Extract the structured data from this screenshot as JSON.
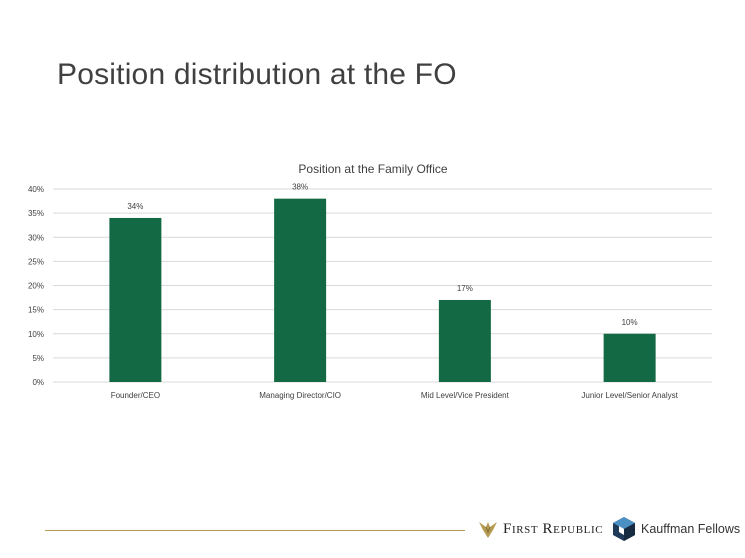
{
  "slide": {
    "title": "Position distribution at the FO"
  },
  "footer": {
    "left_logo_text": "First Republic",
    "right_logo_text": "Kauffman Fellows"
  },
  "colors": {
    "bar": "#136944",
    "grid": "#d9d9d9",
    "text": "#404040",
    "gold": "#b59a52"
  },
  "chart_data": {
    "type": "bar",
    "title": "Position at the Family Office",
    "categories": [
      "Founder/CEO",
      "Managing Director/CIO",
      "Mid Level/Vice President",
      "Junior Level/Senior Analyst"
    ],
    "values": [
      34,
      38,
      17,
      10
    ],
    "data_labels": [
      "34%",
      "38%",
      "17%",
      "10%"
    ],
    "ylim": [
      0,
      40
    ],
    "yticks": [
      0,
      5,
      10,
      15,
      20,
      25,
      30,
      35,
      40
    ],
    "ytick_labels": [
      "0%",
      "5%",
      "10%",
      "15%",
      "20%",
      "25%",
      "30%",
      "35%",
      "40%"
    ],
    "grid": true,
    "legend": "none"
  }
}
